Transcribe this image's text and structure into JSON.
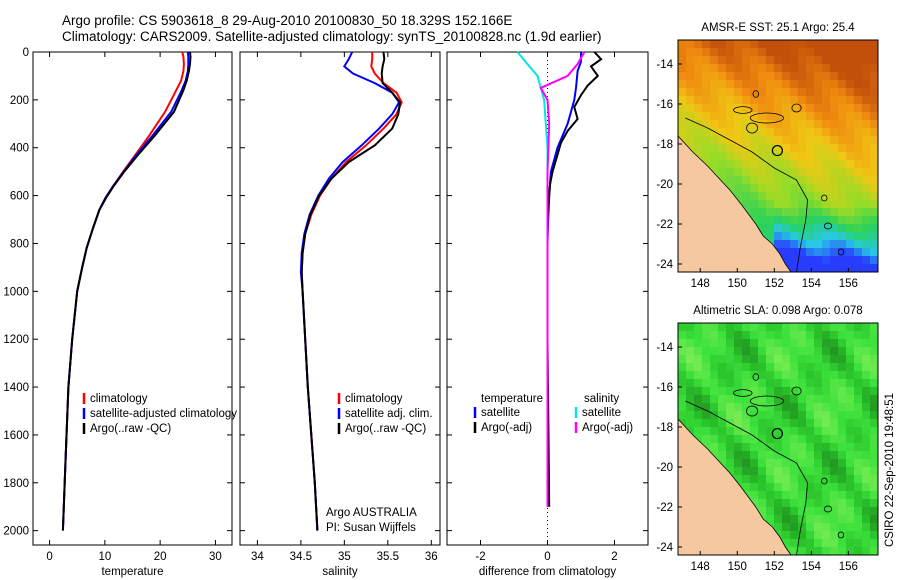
{
  "header": {
    "line1": "Argo profile: CS 5903618_8 29-Aug-2010 20100830_50 18.329S 152.166E",
    "line2": "Climatology: CARS2009. Satellite-adjusted climatology: synTS_20100828.nc (1.9d earlier)"
  },
  "colors": {
    "climatology": "#ff0000",
    "satellite": "#0000ff",
    "argo": "#000000",
    "salinity_satellite": "#00e6e6",
    "salinity_argo": "#ff00ff",
    "land": "#f5c8a0"
  },
  "credit": "CSIRO 22-Sep-2010 19:48:51",
  "chart_data": [
    {
      "type": "line",
      "title": "",
      "xlabel": "temperature",
      "ylabel": "",
      "xlim": [
        -3,
        33
      ],
      "ylim": [
        2060,
        0
      ],
      "xticks": [
        0,
        10,
        20,
        30
      ],
      "yticks": [
        0,
        200,
        400,
        600,
        800,
        1000,
        1200,
        1400,
        1600,
        1800,
        2000
      ],
      "legend": [
        "climatology",
        "satellite-adjusted climatology",
        "Argo(..raw -QC)"
      ],
      "series": [
        {
          "name": "climatology",
          "color": "#ff0000",
          "x": [
            24.0,
            24.2,
            24.3,
            24.2,
            23.8,
            22.9,
            20.9,
            18.0,
            15.5,
            13.3,
            11.5,
            10.1,
            9.0,
            7.8,
            6.7,
            5.9,
            5.0,
            4.1,
            3.4,
            2.9,
            2.4
          ],
          "y": [
            0,
            20,
            50,
            80,
            120,
            160,
            250,
            350,
            430,
            500,
            560,
            610,
            660,
            740,
            820,
            900,
            1000,
            1200,
            1400,
            1700,
            2000
          ]
        },
        {
          "name": "satellite-adjusted climatology",
          "color": "#0000ff",
          "x": [
            25.0,
            25.1,
            25.1,
            25.0,
            24.6,
            23.9,
            22.0,
            18.6,
            15.7,
            13.4,
            11.5,
            10.1,
            9.0,
            7.8,
            6.7,
            5.9,
            5.0,
            4.1,
            3.4,
            2.9,
            2.4
          ],
          "y": [
            0,
            20,
            50,
            80,
            120,
            160,
            250,
            350,
            430,
            500,
            560,
            610,
            660,
            740,
            820,
            900,
            1000,
            1200,
            1400,
            1700,
            2000
          ]
        },
        {
          "name": "Argo(..raw -QC)",
          "color": "#000000",
          "x": [
            25.4,
            25.5,
            25.4,
            25.2,
            24.8,
            24.2,
            22.5,
            19.0,
            16.0,
            13.5,
            11.6,
            10.2,
            9.0,
            7.8,
            6.7,
            5.9,
            5.0,
            4.1,
            3.4,
            2.9,
            2.4
          ],
          "y": [
            0,
            20,
            50,
            80,
            120,
            160,
            250,
            350,
            430,
            500,
            560,
            610,
            660,
            740,
            820,
            900,
            1000,
            1200,
            1400,
            1700,
            2000
          ]
        }
      ]
    },
    {
      "type": "line",
      "title": "",
      "xlabel": "salinity",
      "ylabel": "",
      "xlim": [
        33.8,
        36.1
      ],
      "ylim": [
        2060,
        0
      ],
      "xticks": [
        34,
        34.5,
        35,
        35.5,
        36
      ],
      "legend": [
        "climatology",
        "satellite adj. clim.",
        "Argo(..raw -QC)"
      ],
      "annotation": [
        "Argo AUSTRALIA",
        "PI: Susan Wijffels"
      ],
      "series": [
        {
          "name": "climatology",
          "color": "#ff0000",
          "x": [
            35.32,
            35.32,
            35.31,
            35.35,
            35.45,
            35.6,
            35.66,
            35.6,
            35.45,
            35.25,
            35.02,
            34.85,
            34.72,
            34.62,
            34.55,
            34.52,
            34.51,
            34.52,
            34.55,
            34.58,
            34.62,
            34.66,
            34.69
          ],
          "y": [
            0,
            30,
            60,
            90,
            130,
            170,
            210,
            260,
            320,
            390,
            460,
            530,
            600,
            680,
            760,
            840,
            920,
            1000,
            1200,
            1400,
            1600,
            1800,
            2000
          ]
        },
        {
          "name": "satellite adj. clim.",
          "color": "#0000ff",
          "x": [
            35.09,
            35.05,
            35.0,
            35.1,
            35.35,
            35.55,
            35.63,
            35.55,
            35.4,
            35.2,
            34.98,
            34.82,
            34.7,
            34.6,
            34.54,
            34.51,
            34.5,
            34.52,
            34.55,
            34.58,
            34.62,
            34.66,
            34.69
          ],
          "y": [
            0,
            30,
            60,
            90,
            130,
            170,
            210,
            260,
            320,
            390,
            460,
            530,
            600,
            680,
            760,
            840,
            920,
            1000,
            1200,
            1400,
            1600,
            1800,
            2000
          ]
        },
        {
          "name": "Argo(..raw -QC)",
          "color": "#000000",
          "x": [
            35.45,
            35.46,
            35.44,
            35.43,
            35.44,
            35.55,
            35.64,
            35.62,
            35.55,
            35.35,
            35.05,
            34.85,
            34.71,
            34.61,
            34.55,
            34.52,
            34.51,
            34.52,
            34.55,
            34.58,
            34.62,
            34.66,
            34.69
          ],
          "y": [
            0,
            30,
            60,
            90,
            130,
            170,
            210,
            260,
            320,
            390,
            460,
            530,
            600,
            680,
            760,
            840,
            920,
            1000,
            1200,
            1400,
            1600,
            1800,
            2000
          ]
        }
      ]
    },
    {
      "type": "line",
      "title": "",
      "xlabel": "difference from climatology",
      "ylabel": "",
      "xlim": [
        -3,
        3
      ],
      "ylim": [
        2060,
        0
      ],
      "xticks": [
        -2,
        0,
        2
      ],
      "legend_groups": [
        {
          "header": "temperature",
          "items": [
            "satellite",
            "Argo(-adj)"
          ]
        },
        {
          "header": "salinity",
          "items": [
            "satellite",
            "Argo(-adj)"
          ]
        }
      ],
      "series": [
        {
          "name": "temperature satellite",
          "color": "#0000ff",
          "x": [
            1.0,
            1.0,
            0.9,
            0.85,
            0.8,
            0.7,
            0.6,
            0.3,
            0.1,
            0.05,
            0.02,
            0.0,
            0.0,
            0.0
          ],
          "y": [
            0,
            40,
            80,
            150,
            200,
            250,
            300,
            400,
            500,
            600,
            700,
            800,
            1000,
            1900
          ]
        },
        {
          "name": "temperature Argo(-adj)",
          "color": "#000000",
          "x": [
            1.4,
            1.6,
            1.3,
            1.5,
            1.2,
            1.0,
            0.8,
            0.9,
            0.6,
            0.4,
            0.3,
            0.15,
            0.08,
            0.05,
            0.0,
            0.0,
            0.0,
            0.05
          ],
          "y": [
            0,
            30,
            60,
            100,
            140,
            180,
            230,
            280,
            330,
            380,
            430,
            500,
            550,
            600,
            700,
            800,
            1200,
            1900
          ]
        },
        {
          "name": "salinity satellite",
          "color": "#00e6e6",
          "x": [
            -0.9,
            -0.6,
            -0.3,
            -0.2,
            -0.1,
            -0.05,
            0.0,
            0.0,
            0.0,
            0.0
          ],
          "y": [
            0,
            50,
            100,
            150,
            200,
            300,
            400,
            600,
            1000,
            1900
          ]
        },
        {
          "name": "salinity Argo(-adj)",
          "color": "#ff00ff",
          "x": [
            1.1,
            0.9,
            0.6,
            -0.2,
            0.0,
            0.05,
            0.0,
            0.0,
            0.0
          ],
          "y": [
            0,
            50,
            100,
            150,
            200,
            300,
            500,
            800,
            1900
          ]
        }
      ]
    },
    {
      "type": "heatmap",
      "title": "AMSR-E SST: 25.1 Argo: 25.4",
      "xticks": [
        148,
        150,
        152,
        154,
        156
      ],
      "yticks": [
        -14,
        -16,
        -18,
        -20,
        -22,
        -24
      ],
      "xlim": [
        146.8,
        157.6
      ],
      "ylim": [
        -24.4,
        -12.8
      ]
    },
    {
      "type": "heatmap",
      "title": "Altimetric SLA: 0.098 Argo: 0.078",
      "xticks": [
        148,
        150,
        152,
        154,
        156
      ],
      "yticks": [
        -14,
        -16,
        -18,
        -20,
        -22,
        -24
      ],
      "xlim": [
        146.8,
        157.6
      ],
      "ylim": [
        -24.4,
        -12.8
      ]
    }
  ]
}
